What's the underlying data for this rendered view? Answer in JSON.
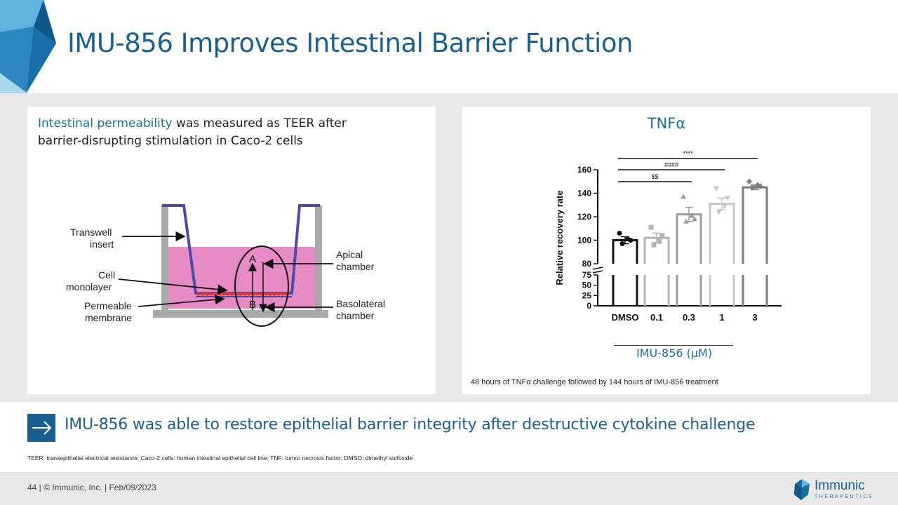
{
  "slide": {
    "title": "IMU-856 Improves Intestinal Barrier Function"
  },
  "left_panel": {
    "intro_highlight": "Intestinal permeability",
    "intro_rest": " was measured as TEER after barrier-disrupting stimulation in Caco-2 cells",
    "diagram_labels": {
      "transwell_1": "Transwell",
      "transwell_2": "insert",
      "cell_1": "Cell",
      "cell_2": "monolayer",
      "perm_1": "Permeable",
      "perm_2": "membrane",
      "apical_1": "Apical",
      "apical_2": "chamber",
      "baso_1": "Basolateral",
      "baso_2": "chamber",
      "a": "A",
      "b": "B"
    }
  },
  "chart_data": {
    "type": "bar",
    "title": "TNFα",
    "categories": [
      "DMSO",
      "0.1",
      "0.3",
      "1",
      "3"
    ],
    "values": [
      100,
      102,
      122,
      131,
      145
    ],
    "errors": [
      3,
      4,
      6,
      5,
      2
    ],
    "points": [
      [
        106,
        100,
        97,
        101
      ],
      [
        111,
        104,
        96,
        99
      ],
      [
        137,
        118,
        116,
        121
      ],
      [
        144,
        136,
        124,
        129
      ],
      [
        150,
        146,
        145,
        147
      ]
    ],
    "ylabel": "Relative recovery rate",
    "xlabel": "IMU-856 (µM)",
    "yticks": [
      0,
      25,
      50,
      75,
      80,
      100,
      120,
      140,
      160
    ],
    "axis_break": [
      75,
      80
    ],
    "ylim": [
      0,
      160
    ],
    "colors": [
      "#111111",
      "#b3b3b3",
      "#9c9c9c",
      "#c6c6c6",
      "#7c7c7c"
    ],
    "significance": [
      {
        "label": "$$",
        "from": "DMSO",
        "to": "0.3"
      },
      {
        "label": "####",
        "from": "DMSO",
        "to": "1"
      },
      {
        "label": "****",
        "from": "DMSO",
        "to": "3"
      }
    ],
    "note": "48 hours of TNFα challenge followed by 144 hours of IMU-856 treatment"
  },
  "takeaway": "IMU-856 was able to restore epithelial barrier integrity after destructive cytokine challenge",
  "footnote": "TEER: transepithelial electrical resistance; Caco-2 cells: human intestinal epithelial cell line; TNF: tumor necrosis factor; DMSO: dimethyl sulfoxide",
  "footer": {
    "text": "44  |  © Immunic, Inc.  |  Feb/09/2023",
    "logo_name": "Immunic",
    "logo_sub": "THERAPEUTICS"
  },
  "colors": {
    "brand": "#1a5f8f",
    "accent": "#1a6e99",
    "medium_pink": "#e78bc5",
    "cells": "#d43a3a",
    "insert": "#4b4aa8"
  }
}
